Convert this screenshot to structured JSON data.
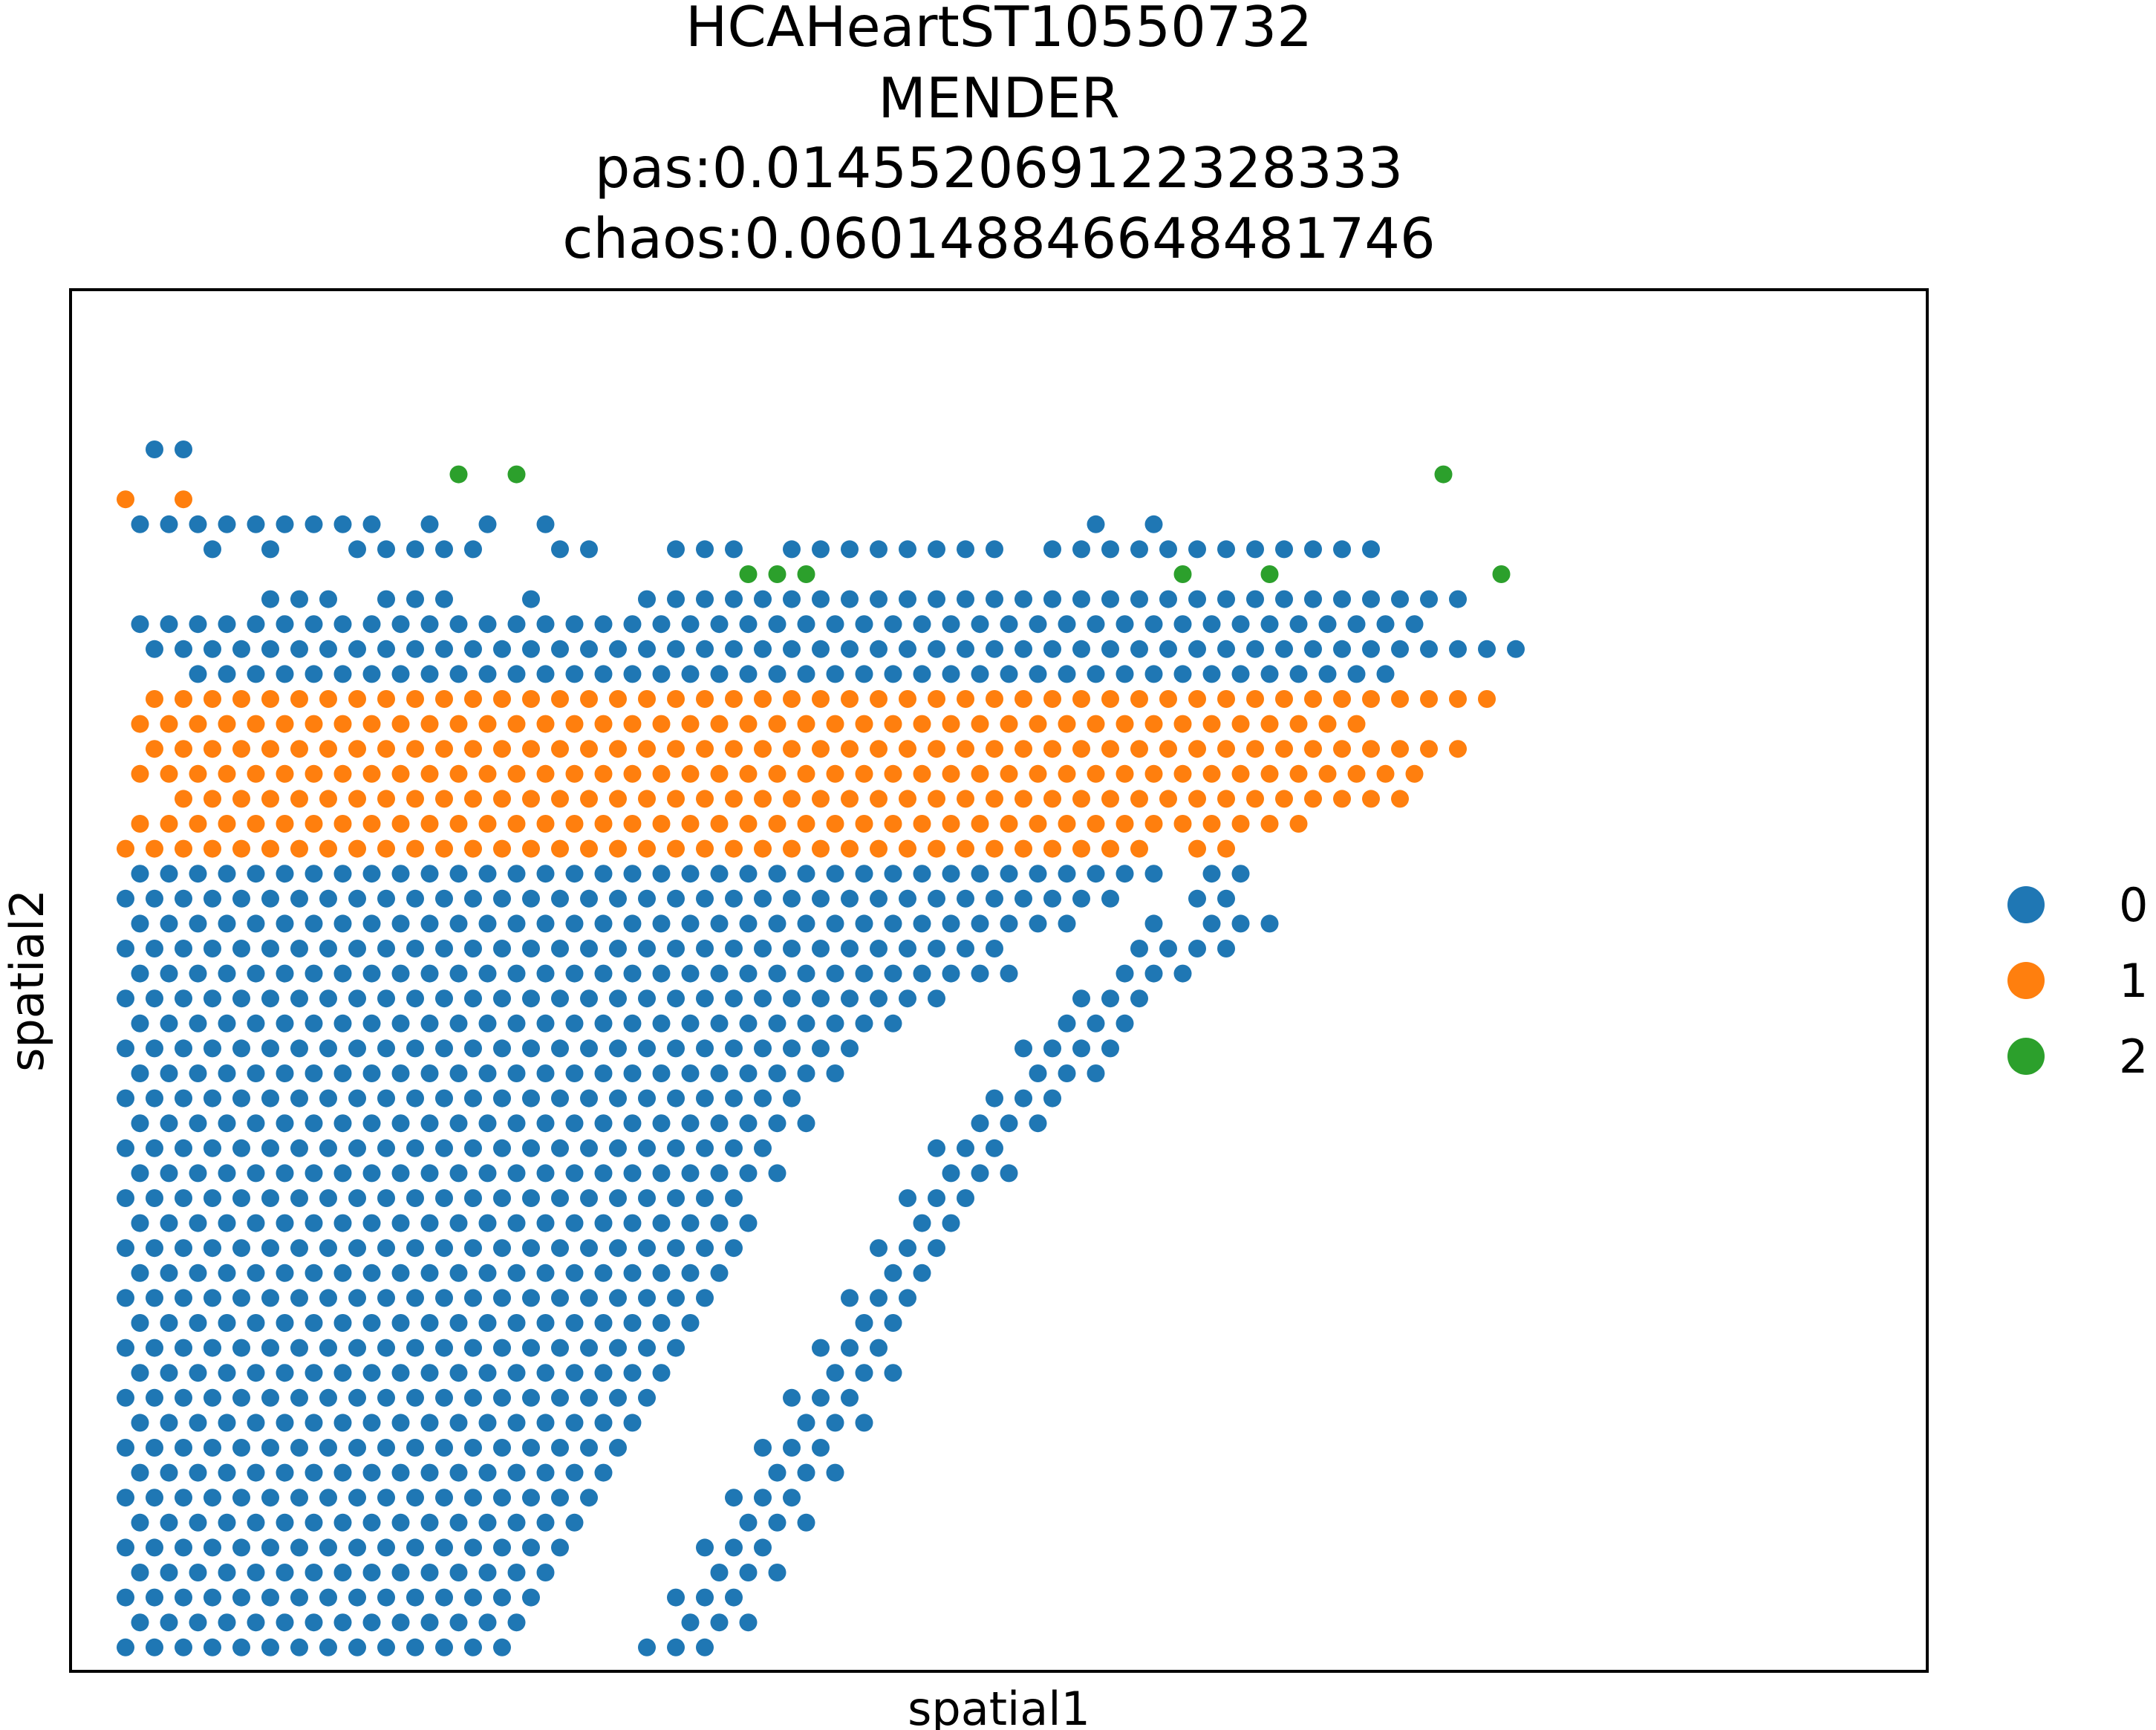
{
  "title_lines": [
    "HCAHeartST10550732",
    "MENDER",
    "pas:0.014552069122328333",
    "chaos:0.060148846648481746"
  ],
  "chart_data": {
    "type": "scatter",
    "xlabel": "spatial1",
    "ylabel": "spatial2",
    "legend_placement": "right",
    "categories": [
      "0",
      "1",
      "2"
    ],
    "colors": {
      "0": "#1f77b4",
      "1": "#ff7f0e",
      "2": "#2ca02c"
    },
    "grid": false,
    "ticks_shown": false,
    "rows": [
      [
        "0",
        [
          [
            2,
            2
          ],
          [
            3,
            3
          ]
        ]
      ],
      [
        "2",
        [
          [
            12,
            12
          ],
          [
            14,
            14
          ],
          [
            46,
            46
          ]
        ]
      ],
      [
        "1",
        [
          [
            1,
            1
          ],
          [
            3,
            3
          ]
        ]
      ],
      [
        "0",
        [
          [
            1,
            9
          ],
          [
            11,
            11
          ],
          [
            13,
            13
          ],
          [
            15,
            15
          ],
          [
            34,
            34
          ],
          [
            36,
            36
          ]
        ]
      ],
      [
        "0",
        [
          [
            4,
            4
          ],
          [
            6,
            6
          ],
          [
            9,
            13
          ],
          [
            16,
            17
          ],
          [
            20,
            22
          ],
          [
            24,
            31
          ],
          [
            33,
            44
          ]
        ]
      ],
      [
        "2",
        [
          [
            22,
            24
          ],
          [
            37,
            37
          ],
          [
            40,
            40
          ],
          [
            48,
            48
          ]
        ]
      ],
      [
        "0",
        [
          [
            6,
            8
          ],
          [
            10,
            12
          ],
          [
            15,
            15
          ],
          [
            19,
            47
          ]
        ]
      ],
      [
        "0",
        [
          [
            1,
            45
          ]
        ]
      ],
      [
        "0",
        [
          [
            2,
            49
          ]
        ]
      ],
      [
        "0",
        [
          [
            3,
            44
          ]
        ]
      ],
      [
        "1",
        [
          [
            2,
            48
          ]
        ]
      ],
      [
        "1",
        [
          [
            1,
            43
          ]
        ]
      ],
      [
        "1",
        [
          [
            2,
            47
          ]
        ]
      ],
      [
        "1",
        [
          [
            1,
            45
          ]
        ]
      ],
      [
        "1",
        [
          [
            3,
            45
          ]
        ]
      ],
      [
        "1",
        [
          [
            1,
            41
          ]
        ]
      ],
      [
        "1",
        [
          [
            1,
            36
          ],
          [
            38,
            39
          ]
        ]
      ],
      [
        "0",
        [
          [
            1,
            36
          ],
          [
            38,
            39
          ]
        ]
      ],
      [
        "0",
        [
          [
            1,
            35
          ],
          [
            38,
            39
          ]
        ]
      ],
      [
        "0",
        [
          [
            1,
            33
          ],
          [
            36,
            36
          ],
          [
            38,
            40
          ]
        ]
      ],
      [
        "0",
        [
          [
            1,
            31
          ],
          [
            36,
            39
          ]
        ]
      ],
      [
        "0",
        [
          [
            1,
            31
          ],
          [
            35,
            37
          ]
        ]
      ],
      [
        "0",
        [
          [
            1,
            29
          ],
          [
            34,
            36
          ]
        ]
      ],
      [
        "0",
        [
          [
            1,
            27
          ],
          [
            33,
            35
          ]
        ]
      ],
      [
        "0",
        [
          [
            1,
            26
          ],
          [
            32,
            35
          ]
        ]
      ],
      [
        "0",
        [
          [
            1,
            25
          ],
          [
            32,
            34
          ]
        ]
      ],
      [
        "0",
        [
          [
            1,
            24
          ],
          [
            31,
            33
          ]
        ]
      ],
      [
        "0",
        [
          [
            1,
            24
          ],
          [
            30,
            32
          ]
        ]
      ],
      [
        "0",
        [
          [
            1,
            23
          ],
          [
            29,
            31
          ]
        ]
      ],
      [
        "0",
        [
          [
            1,
            23
          ],
          [
            29,
            31
          ]
        ]
      ],
      [
        "0",
        [
          [
            1,
            22
          ],
          [
            28,
            30
          ]
        ]
      ],
      [
        "0",
        [
          [
            1,
            22
          ],
          [
            28,
            29
          ]
        ]
      ],
      [
        "0",
        [
          [
            1,
            22
          ],
          [
            27,
            29
          ]
        ]
      ],
      [
        "0",
        [
          [
            1,
            21
          ],
          [
            27,
            28
          ]
        ]
      ],
      [
        "0",
        [
          [
            1,
            21
          ],
          [
            26,
            28
          ]
        ]
      ],
      [
        "0",
        [
          [
            1,
            20
          ],
          [
            26,
            27
          ]
        ]
      ],
      [
        "0",
        [
          [
            1,
            20
          ],
          [
            25,
            27
          ]
        ]
      ],
      [
        "0",
        [
          [
            1,
            19
          ],
          [
            25,
            27
          ]
        ]
      ],
      [
        "0",
        [
          [
            1,
            19
          ],
          [
            24,
            26
          ]
        ]
      ],
      [
        "0",
        [
          [
            1,
            18
          ],
          [
            24,
            26
          ]
        ]
      ],
      [
        "0",
        [
          [
            1,
            18
          ],
          [
            23,
            25
          ]
        ]
      ],
      [
        "0",
        [
          [
            1,
            17
          ],
          [
            23,
            25
          ]
        ]
      ],
      [
        "0",
        [
          [
            1,
            17
          ],
          [
            22,
            24
          ]
        ]
      ],
      [
        "0",
        [
          [
            1,
            16
          ],
          [
            22,
            24
          ]
        ]
      ],
      [
        "0",
        [
          [
            1,
            16
          ],
          [
            21,
            23
          ]
        ]
      ],
      [
        "0",
        [
          [
            1,
            15
          ],
          [
            21,
            23
          ]
        ]
      ],
      [
        "0",
        [
          [
            1,
            15
          ],
          [
            20,
            22
          ]
        ]
      ],
      [
        "0",
        [
          [
            1,
            14
          ],
          [
            20,
            22
          ]
        ]
      ],
      [
        "0",
        [
          [
            1,
            14
          ],
          [
            19,
            21
          ]
        ]
      ]
    ]
  }
}
